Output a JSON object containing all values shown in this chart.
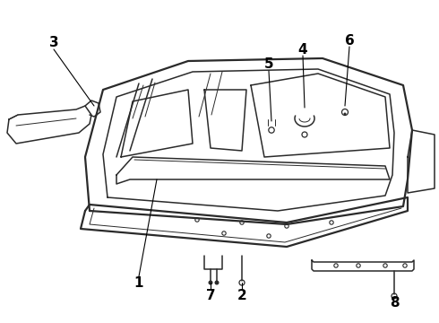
{
  "bg_color": "#ffffff",
  "line_color": "#2a2a2a",
  "label_color": "#000000",
  "fig_width": 4.9,
  "fig_height": 3.6,
  "dpi": 100,
  "lw_thick": 1.6,
  "lw_main": 1.1,
  "lw_thin": 0.7
}
